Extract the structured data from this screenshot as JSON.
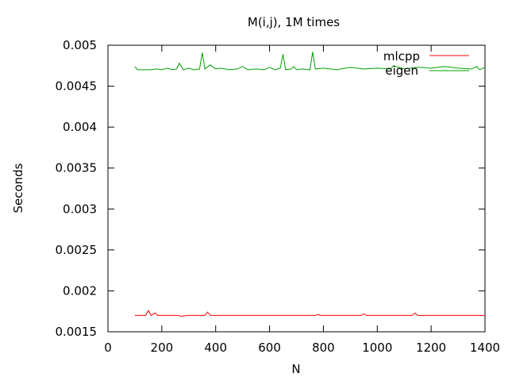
{
  "chart_data": {
    "type": "line",
    "title": "M(i,j), 1M times",
    "xlabel": "N",
    "ylabel": "Seconds",
    "xlim": [
      0,
      1400
    ],
    "ylim": [
      0.0015,
      0.005
    ],
    "xticks": [
      0,
      200,
      400,
      600,
      800,
      1000,
      1200,
      1400
    ],
    "xtick_labels": [
      "0",
      "200",
      "400",
      "600",
      "800",
      "1000",
      "1200",
      "1400"
    ],
    "yticks": [
      0.0015,
      0.002,
      0.0025,
      0.003,
      0.0035,
      0.004,
      0.0045,
      0.005
    ],
    "ytick_labels": [
      "0.0015",
      "0.002",
      "0.0025",
      "0.003",
      "0.0035",
      "0.004",
      "0.0045",
      "0.005"
    ],
    "grid": false,
    "legend_position": "top-right",
    "series": [
      {
        "name": "mlcpp",
        "color": "#ff0000",
        "x": [
          100,
          140,
          150,
          160,
          175,
          185,
          200,
          260,
          270,
          300,
          320,
          330,
          360,
          370,
          380,
          400,
          500,
          600,
          700,
          770,
          780,
          790,
          900,
          940,
          950,
          960,
          1000,
          1100,
          1130,
          1140,
          1150,
          1200,
          1300,
          1400
        ],
        "y": [
          0.0017,
          0.0017,
          0.00176,
          0.0017,
          0.00173,
          0.0017,
          0.0017,
          0.0017,
          0.00169,
          0.0017,
          0.0017,
          0.0017,
          0.0017,
          0.00174,
          0.0017,
          0.0017,
          0.0017,
          0.0017,
          0.0017,
          0.0017,
          0.00171,
          0.0017,
          0.0017,
          0.0017,
          0.00172,
          0.0017,
          0.0017,
          0.0017,
          0.0017,
          0.00173,
          0.0017,
          0.0017,
          0.0017,
          0.0017
        ]
      },
      {
        "name": "eigen",
        "color": "#00a000",
        "x": [
          100,
          110,
          120,
          140,
          160,
          180,
          200,
          220,
          240,
          255,
          265,
          280,
          300,
          320,
          340,
          350,
          360,
          380,
          400,
          420,
          450,
          480,
          500,
          520,
          550,
          580,
          600,
          620,
          640,
          650,
          660,
          680,
          690,
          700,
          720,
          750,
          760,
          770,
          800,
          850,
          900,
          950,
          1000,
          1050,
          1060,
          1100,
          1150,
          1200,
          1250,
          1300,
          1350,
          1370,
          1380,
          1400
        ],
        "y": [
          0.00474,
          0.0047,
          0.0047,
          0.0047,
          0.0047,
          0.00471,
          0.0047,
          0.00472,
          0.0047,
          0.00471,
          0.00478,
          0.0047,
          0.00472,
          0.0047,
          0.00471,
          0.00491,
          0.00471,
          0.00476,
          0.00471,
          0.00472,
          0.0047,
          0.00471,
          0.00474,
          0.0047,
          0.00471,
          0.0047,
          0.00473,
          0.0047,
          0.00472,
          0.00489,
          0.0047,
          0.00471,
          0.00474,
          0.0047,
          0.00471,
          0.0047,
          0.00492,
          0.00471,
          0.00472,
          0.0047,
          0.00473,
          0.00471,
          0.00472,
          0.00471,
          0.00475,
          0.00471,
          0.00473,
          0.00472,
          0.00474,
          0.00472,
          0.00471,
          0.00474,
          0.0047,
          0.00473
        ]
      }
    ]
  }
}
